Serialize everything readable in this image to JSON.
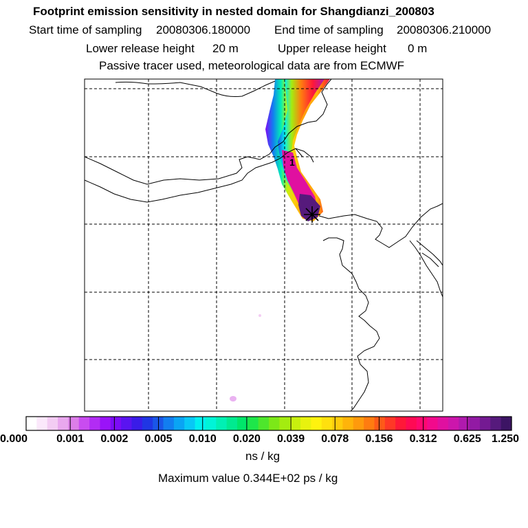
{
  "header": {
    "title": "Footprint emission sensitivity in nested domain for Shangdianzi_200803",
    "start_label": "Start time of sampling",
    "start_value": "20080306.180000",
    "end_label": "End time of sampling",
    "end_value": "20080306.210000",
    "lower_label": "Lower release height",
    "lower_value": "20 m",
    "upper_label": "Upper release height",
    "upper_value": "0 m",
    "subtitle": "Passive tracer used, meteorological data are from ECMWF"
  },
  "map": {
    "release_marker": "1",
    "receptor_icon": "asterisk-station-icon"
  },
  "colorbar": {
    "ticks": [
      "0.000",
      "0.001",
      "0.002",
      "0.005",
      "0.010",
      "0.020",
      "0.039",
      "0.078",
      "0.156",
      "0.312",
      "0.625",
      "1.250"
    ],
    "colors": [
      "#ffffff",
      "#fbe8fb",
      "#f3ccf3",
      "#e9a8ee",
      "#dc7ee8",
      "#c94cf0",
      "#b22cf4",
      "#9a13f8",
      "#7c0cf6",
      "#5a14f0",
      "#3a1ce8",
      "#2036e4",
      "#1a56e8",
      "#127ef0",
      "#0aa4f4",
      "#08c8f6",
      "#00f0f0",
      "#00f4d8",
      "#00f0b4",
      "#00ea90",
      "#00e66a",
      "#1ee64a",
      "#4ee62c",
      "#7ce818",
      "#a4ec10",
      "#c8f00e",
      "#e8f20e",
      "#fff20e",
      "#ffe00e",
      "#ffcc0c",
      "#ffb40a",
      "#ff9a0c",
      "#ff7c10",
      "#ff5a18",
      "#ff3826",
      "#ff1838",
      "#ff0a54",
      "#ff0870",
      "#f20a8c",
      "#e010a0",
      "#cc16ac",
      "#b01aae",
      "#921aa4",
      "#741a92",
      "#561a7c",
      "#3c1464"
    ],
    "units": "ns / kg",
    "max_text": "Maximum value  0.344E+02 ps / kg"
  }
}
